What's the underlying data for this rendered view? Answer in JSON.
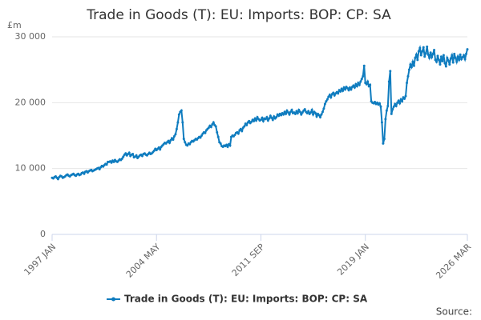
{
  "chart_data": {
    "type": "line",
    "title": "Trade in Goods (T): EU: Imports: BOP: CP: SA",
    "y_unit": "£m",
    "source": "Source:",
    "categories": [
      "1997 JAN",
      null,
      null,
      null,
      null,
      null,
      null,
      null,
      null,
      null,
      null,
      null,
      null,
      null,
      null,
      null,
      null,
      null,
      null,
      null,
      null,
      null,
      null,
      null,
      null,
      null,
      null,
      null,
      null,
      null,
      null,
      null,
      null,
      null,
      null,
      null,
      null,
      null,
      null,
      null,
      null,
      null,
      null,
      null,
      null,
      null,
      null,
      null,
      null,
      null,
      null,
      null,
      null,
      null,
      null,
      null,
      null,
      null,
      null,
      null,
      null,
      null,
      null,
      null,
      null,
      null,
      null,
      null,
      null,
      null,
      null,
      null,
      null,
      null,
      null,
      null,
      null,
      null,
      null,
      null,
      null,
      null,
      null,
      null,
      null,
      null,
      null,
      null,
      "2004 MAY",
      null,
      null,
      null,
      null,
      null,
      null,
      null,
      null,
      null,
      null,
      null,
      null,
      null,
      null,
      null,
      null,
      null,
      null,
      null,
      null,
      null,
      null,
      null,
      null,
      null,
      null,
      null,
      null,
      null,
      null,
      null,
      null,
      null,
      null,
      null,
      null,
      null,
      null,
      null,
      null,
      null,
      null,
      null,
      null,
      null,
      null,
      null,
      null,
      null,
      null,
      null,
      null,
      null,
      null,
      null,
      null,
      null,
      null,
      null,
      null,
      null,
      null,
      null,
      null,
      null,
      null,
      null,
      null,
      null,
      null,
      null,
      null,
      null,
      null,
      null,
      null,
      null,
      null,
      null,
      null,
      null,
      null,
      null,
      null,
      null,
      null,
      null,
      "2011 SEP",
      null,
      null,
      null,
      null,
      null,
      null,
      null,
      null,
      null,
      null,
      null,
      null,
      null,
      null,
      null,
      null,
      null,
      null,
      null,
      null,
      null,
      null,
      null,
      null,
      null,
      null,
      null,
      null,
      null,
      null,
      null,
      null,
      null,
      null,
      null,
      null,
      null,
      null,
      null,
      null,
      null,
      null,
      null,
      null,
      null,
      null,
      null,
      null,
      null,
      null,
      null,
      null,
      null,
      null,
      null,
      null,
      null,
      null,
      null,
      null,
      null,
      null,
      null,
      null,
      null,
      null,
      null,
      null,
      null,
      null,
      null,
      null,
      null,
      null,
      null,
      null,
      null,
      null,
      null,
      null,
      null,
      null,
      null,
      null,
      null,
      null,
      null,
      "2019 JAN",
      null,
      null,
      null,
      null,
      null,
      null,
      null,
      null,
      null,
      null,
      null,
      null,
      null,
      null,
      null,
      null,
      null,
      null,
      null,
      null,
      null,
      null,
      null,
      null,
      null,
      null,
      null,
      null,
      null,
      null,
      null,
      null,
      null,
      null,
      null,
      null,
      null,
      null,
      null,
      null,
      null,
      null,
      null,
      null,
      null,
      null,
      null,
      null,
      null,
      null,
      null,
      null,
      null,
      null,
      null,
      null,
      null,
      null,
      null,
      null,
      null,
      null,
      null,
      null,
      null,
      null,
      null,
      null,
      null,
      null,
      null,
      null,
      null,
      null,
      null,
      null,
      null,
      null,
      null,
      null,
      null,
      null,
      null,
      null,
      null,
      "2026 MAR"
    ],
    "series": [
      {
        "name": "Trade in Goods (T): EU: Imports: BOP: CP: SA",
        "color": "#0f7cbf",
        "values": [
          8600,
          8500,
          8700,
          8800,
          8600,
          8400,
          8700,
          8900,
          8800,
          8600,
          8700,
          8800,
          9000,
          9100,
          8900,
          8800,
          9000,
          9100,
          9200,
          9000,
          8900,
          9100,
          9200,
          9000,
          9100,
          9300,
          9400,
          9200,
          9500,
          9600,
          9400,
          9600,
          9700,
          9800,
          9600,
          9700,
          9800,
          9900,
          10000,
          10100,
          9900,
          10200,
          10400,
          10300,
          10500,
          10700,
          10600,
          11000,
          11000,
          11100,
          10900,
          11200,
          11000,
          11300,
          11100,
          11000,
          11200,
          11400,
          11300,
          11500,
          11800,
          12100,
          12300,
          12000,
          12200,
          12400,
          11900,
          12100,
          12200,
          11700,
          11800,
          12000,
          11600,
          11800,
          12000,
          12100,
          11900,
          12200,
          12300,
          12100,
          12000,
          12200,
          12400,
          12200,
          12300,
          12500,
          12700,
          13000,
          12800,
          13000,
          13200,
          12900,
          13300,
          13500,
          13700,
          13900,
          13800,
          14000,
          14200,
          13900,
          14300,
          14600,
          14400,
          14900,
          15200,
          16000,
          17000,
          18200,
          18600,
          18800,
          17000,
          14500,
          14000,
          13600,
          13500,
          13800,
          13700,
          14000,
          14200,
          14100,
          14300,
          14500,
          14400,
          14600,
          14800,
          14700,
          15000,
          15300,
          15500,
          15400,
          15800,
          16000,
          16200,
          16500,
          16300,
          16700,
          17000,
          16600,
          16400,
          15500,
          14800,
          14000,
          13800,
          13400,
          13300,
          13500,
          13400,
          13600,
          13300,
          13700,
          13500,
          14800,
          15000,
          14900,
          15100,
          15400,
          15500,
          15300,
          15800,
          16000,
          15700,
          16200,
          16400,
          16800,
          16600,
          17000,
          17200,
          16900,
          17100,
          17400,
          17200,
          17600,
          17300,
          17800,
          17500,
          17300,
          17400,
          17700,
          17200,
          17600,
          17500,
          17800,
          17300,
          17600,
          18000,
          17700,
          17400,
          17900,
          17600,
          17800,
          18200,
          18000,
          18300,
          18100,
          18400,
          18200,
          18600,
          18300,
          18800,
          18500,
          18200,
          18600,
          18900,
          18400,
          18500,
          18300,
          18700,
          18400,
          18900,
          18600,
          18200,
          18500,
          18800,
          19000,
          18600,
          18400,
          18700,
          18300,
          18500,
          18900,
          18200,
          18600,
          18400,
          17900,
          18300,
          18100,
          17800,
          18200,
          18600,
          19100,
          19800,
          20200,
          20500,
          20900,
          21200,
          20800,
          21300,
          21500,
          21100,
          21400,
          21600,
          21400,
          21900,
          21700,
          22100,
          21800,
          22300,
          22000,
          22400,
          22200,
          21900,
          22300,
          22000,
          22400,
          22600,
          22300,
          22800,
          22500,
          23000,
          22700,
          23200,
          23600,
          24000,
          25600,
          23000,
          22800,
          23200,
          22500,
          22700,
          20200,
          20000,
          19900,
          20100,
          19800,
          20000,
          19700,
          19900,
          19400,
          17000,
          13800,
          14500,
          17500,
          18800,
          19500,
          23200,
          24800,
          18300,
          19000,
          19400,
          19800,
          19500,
          20000,
          20300,
          19900,
          20500,
          20200,
          20800,
          20600,
          21000,
          23000,
          24000,
          25000,
          25800,
          25400,
          26200,
          25600,
          26800,
          27300,
          26500,
          27800,
          28300,
          27200,
          27800,
          28400,
          27000,
          27500,
          28500,
          27300,
          26800,
          27600,
          26900,
          27400,
          28000,
          26500,
          26200,
          27100,
          26500,
          25800,
          27000,
          26300,
          27200,
          26000,
          25500,
          26800,
          26400,
          25800,
          26700,
          27200,
          26100,
          27400,
          26800,
          26200,
          27000,
          26500,
          27300,
          26600,
          26900,
          27200,
          26600,
          27400,
          28100
        ]
      }
    ],
    "ylim": [
      0,
      30000
    ],
    "yticks": [
      0,
      {
        "value": 10000,
        "label": "10 000"
      },
      {
        "value": 20000,
        "label": "20 000"
      },
      {
        "value": 30000,
        "label": "30 000"
      }
    ],
    "grid": true
  }
}
